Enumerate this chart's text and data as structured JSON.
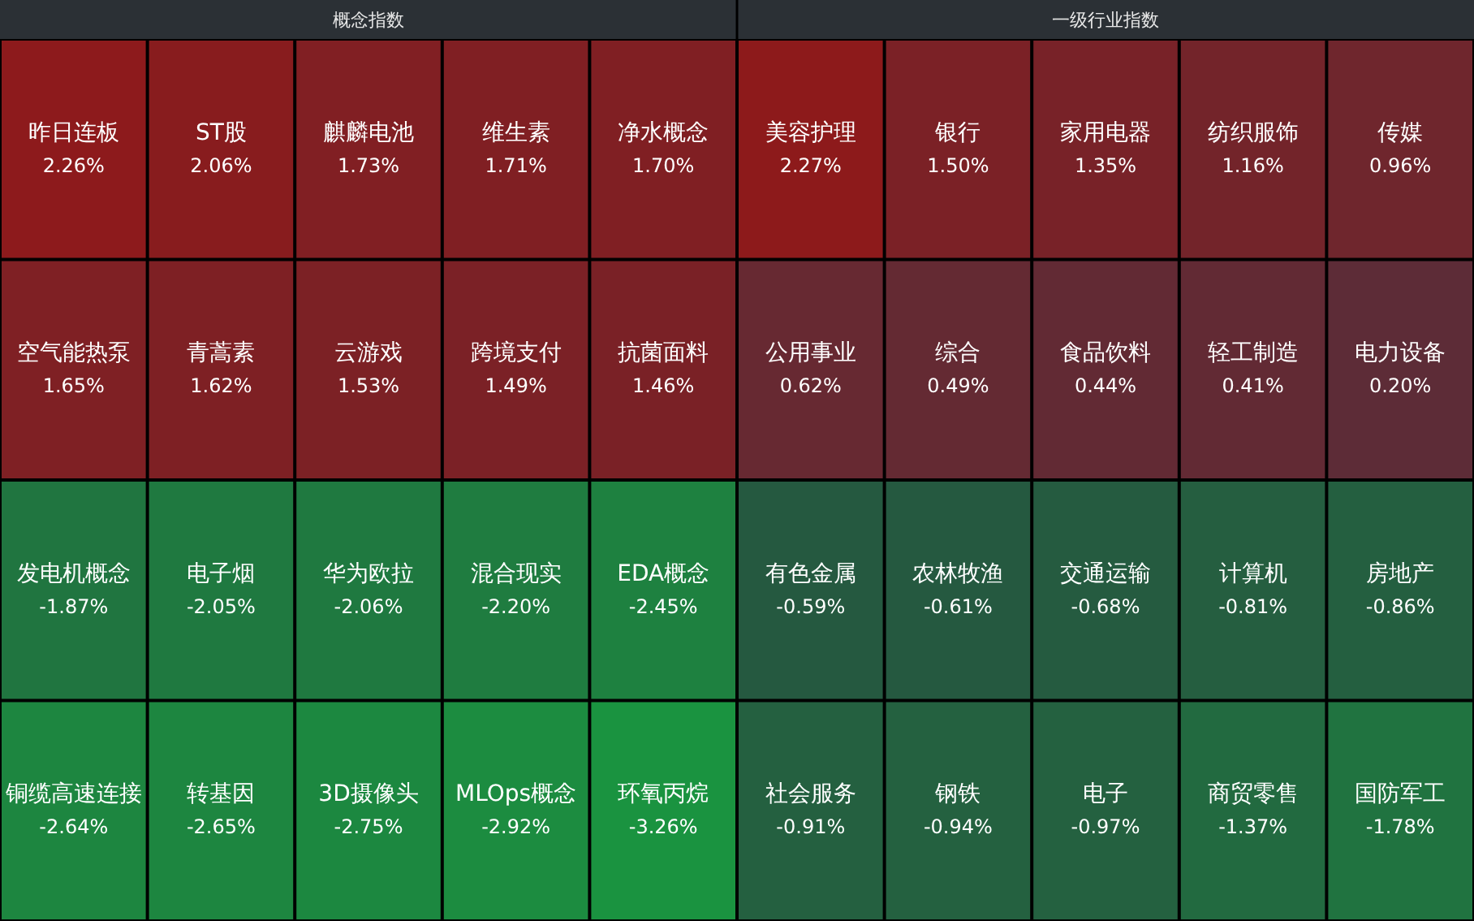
{
  "chart_data": [
    {
      "type": "other",
      "title": "概念指数",
      "categories": [
        "昨日连板",
        "ST股",
        "麒麟电池",
        "维生素",
        "净水概念",
        "空气能热泵",
        "青蒿素",
        "云游戏",
        "跨境支付",
        "抗菌面料",
        "发电机概念",
        "电子烟",
        "华为欧拉",
        "混合现实",
        "EDA概念",
        "铜缆高速连接",
        "转基因",
        "3D摄像头",
        "MLOps概念",
        "环氧丙烷"
      ],
      "values": [
        2.26,
        2.06,
        1.73,
        1.71,
        1.7,
        1.65,
        1.62,
        1.53,
        1.49,
        1.46,
        -1.87,
        -2.05,
        -2.06,
        -2.2,
        -2.45,
        -2.64,
        -2.65,
        -2.75,
        -2.92,
        -3.26
      ],
      "value_labels": [
        "2.26%",
        "2.06%",
        "1.73%",
        "1.71%",
        "1.70%",
        "1.65%",
        "1.62%",
        "1.53%",
        "1.49%",
        "1.46%",
        "-1.87%",
        "-2.05%",
        "-2.06%",
        "-2.20%",
        "-2.45%",
        "-2.64%",
        "-2.65%",
        "-2.75%",
        "-2.92%",
        "-3.26%"
      ]
    },
    {
      "type": "other",
      "title": "一级行业指数",
      "categories": [
        "美容护理",
        "银行",
        "家用电器",
        "纺织服饰",
        "传媒",
        "公用事业",
        "综合",
        "食品饮料",
        "轻工制造",
        "电力设备",
        "有色金属",
        "农林牧渔",
        "交通运输",
        "计算机",
        "房地产",
        "社会服务",
        "钢铁",
        "电子",
        "商贸零售",
        "国防军工"
      ],
      "values": [
        2.27,
        1.5,
        1.35,
        1.16,
        0.96,
        0.62,
        0.49,
        0.44,
        0.41,
        0.2,
        -0.59,
        -0.61,
        -0.68,
        -0.81,
        -0.86,
        -0.91,
        -0.94,
        -0.97,
        -1.37,
        -1.78
      ],
      "value_labels": [
        "2.27%",
        "1.50%",
        "1.35%",
        "1.16%",
        "0.96%",
        "0.62%",
        "0.49%",
        "0.44%",
        "0.41%",
        "0.20%",
        "-0.59%",
        "-0.61%",
        "-0.68%",
        "-0.81%",
        "-0.86%",
        "-0.91%",
        "-0.94%",
        "-0.97%",
        "-1.37%",
        "-1.78%"
      ]
    }
  ]
}
